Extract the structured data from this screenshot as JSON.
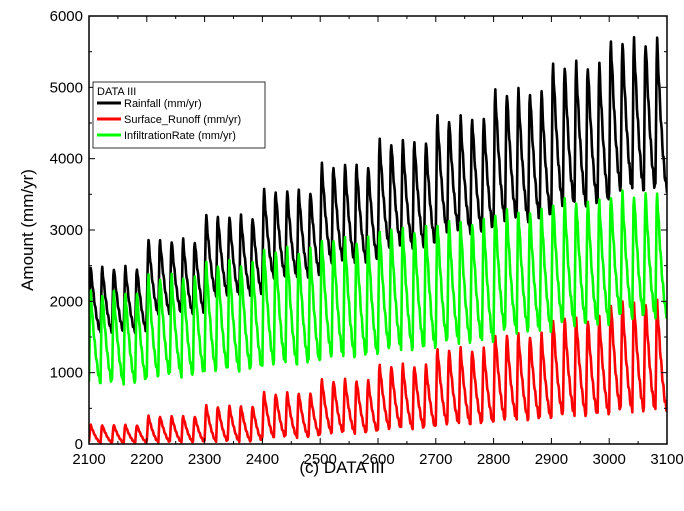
{
  "chart_data": {
    "type": "line",
    "title": "",
    "caption": "(c) DATA III",
    "xlabel": "",
    "ylabel": "Amount (mm/yr)",
    "xlim": [
      2100,
      3100
    ],
    "ylim": [
      0,
      6000
    ],
    "xticks": [
      2100,
      2200,
      2300,
      2400,
      2500,
      2600,
      2700,
      2800,
      2900,
      3000,
      3100
    ],
    "yticks": [
      0,
      1000,
      2000,
      3000,
      4000,
      5000,
      6000
    ],
    "grid": false,
    "legend": {
      "title": "DATA III",
      "placement": "top-left"
    },
    "cycle_years": 20,
    "series": [
      {
        "name": "Rainfall (mm/yr)",
        "color": "#000000",
        "segments": [
          {
            "from": 2100,
            "to": 2200,
            "min": 1500,
            "max": 2600
          },
          {
            "from": 2200,
            "to": 2300,
            "min": 1750,
            "max": 3000
          },
          {
            "from": 2300,
            "to": 2400,
            "min": 2000,
            "max": 3350
          },
          {
            "from": 2400,
            "to": 2500,
            "min": 2250,
            "max": 3720
          },
          {
            "from": 2500,
            "to": 2600,
            "min": 2450,
            "max": 4100
          },
          {
            "from": 2600,
            "to": 2700,
            "min": 2650,
            "max": 4450
          },
          {
            "from": 2700,
            "to": 2800,
            "min": 2850,
            "max": 4800
          },
          {
            "from": 2800,
            "to": 2900,
            "min": 3000,
            "max": 5200
          },
          {
            "from": 2900,
            "to": 3000,
            "min": 3200,
            "max": 5600
          },
          {
            "from": 3000,
            "to": 3100,
            "min": 3400,
            "max": 5950
          }
        ]
      },
      {
        "name": "Surface_Runoff (mm/yr)",
        "color": "#ff0000",
        "segments": [
          {
            "from": 2100,
            "to": 2200,
            "min": 0,
            "max": 300
          },
          {
            "from": 2200,
            "to": 2300,
            "min": 0,
            "max": 440
          },
          {
            "from": 2300,
            "to": 2400,
            "min": 0,
            "max": 600
          },
          {
            "from": 2400,
            "to": 2500,
            "min": 50,
            "max": 800
          },
          {
            "from": 2500,
            "to": 2600,
            "min": 100,
            "max": 1000
          },
          {
            "from": 2600,
            "to": 2700,
            "min": 150,
            "max": 1230
          },
          {
            "from": 2700,
            "to": 2800,
            "min": 200,
            "max": 1480
          },
          {
            "from": 2800,
            "to": 2900,
            "min": 250,
            "max": 1700
          },
          {
            "from": 2900,
            "to": 3000,
            "min": 300,
            "max": 1950
          },
          {
            "from": 3000,
            "to": 3100,
            "min": 350,
            "max": 2200
          }
        ]
      },
      {
        "name": "InfiltrationRate (mm/yr)",
        "color": "#00ff00",
        "segments": [
          {
            "from": 2100,
            "to": 2200,
            "min": 760,
            "max": 2300
          },
          {
            "from": 2200,
            "to": 2300,
            "min": 850,
            "max": 2550
          },
          {
            "from": 2300,
            "to": 2400,
            "min": 920,
            "max": 2750
          },
          {
            "from": 2400,
            "to": 2500,
            "min": 1000,
            "max": 2950
          },
          {
            "from": 2500,
            "to": 2600,
            "min": 1100,
            "max": 3100
          },
          {
            "from": 2600,
            "to": 2700,
            "min": 1200,
            "max": 3250
          },
          {
            "from": 2700,
            "to": 2800,
            "min": 1300,
            "max": 3350
          },
          {
            "from": 2800,
            "to": 2900,
            "min": 1450,
            "max": 3500
          },
          {
            "from": 2900,
            "to": 3000,
            "min": 1550,
            "max": 3650
          },
          {
            "from": 3000,
            "to": 3100,
            "min": 1650,
            "max": 3750
          }
        ]
      }
    ]
  }
}
